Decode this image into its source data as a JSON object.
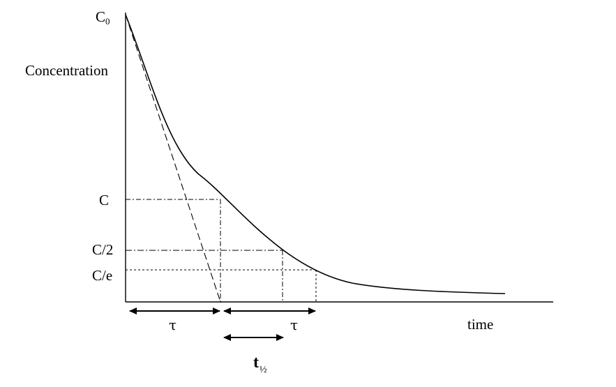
{
  "labels": {
    "c0_main": "C",
    "c0_sub": "0",
    "concentration": "Concentration",
    "c": "C",
    "c_half": "C/2",
    "c_e": "C/e",
    "time": "time",
    "tau_first": "τ",
    "tau_second": "τ",
    "t_half_main": "t",
    "t_half_sub": "½"
  },
  "colors": {
    "ink": "#000000",
    "background": "#ffffff"
  }
}
